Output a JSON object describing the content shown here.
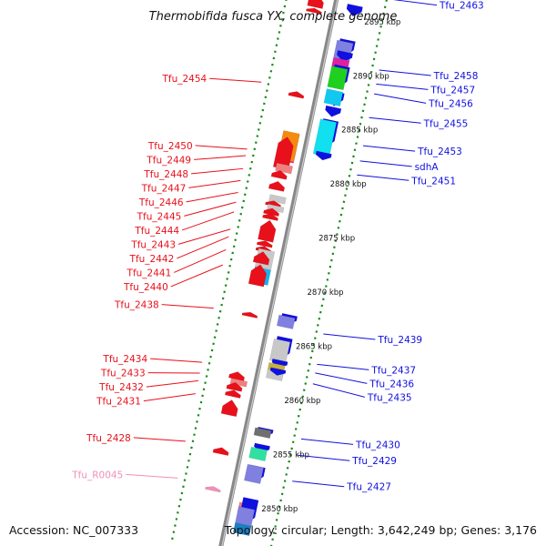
{
  "title": "Thermobifida fusca YX, complete genome",
  "accession": "Accession: NC_007333",
  "topology": "Topology: circular; Length: 3,642,249 bp; Genes: 3,176",
  "colors": {
    "forward": "#e8101a",
    "reverse": "#1010e0",
    "rna": "#f090b8",
    "backbone": "#888888",
    "tick": "#1a8a1a"
  },
  "scale": [
    {
      "text": "2895 kbp",
      "bp": 2895000
    },
    {
      "text": "2890 kbp",
      "bp": 2890000
    },
    {
      "text": "2885 kbp",
      "bp": 2885000
    },
    {
      "text": "2880 kbp",
      "bp": 2880000
    },
    {
      "text": "2875 kbp",
      "bp": 2875000
    },
    {
      "text": "2870 kbp",
      "bp": 2870000
    },
    {
      "text": "2865 kbp",
      "bp": 2865000
    },
    {
      "text": "2860 kbp",
      "bp": 2860000
    },
    {
      "text": "2855 kbp",
      "bp": 2855000
    },
    {
      "text": "2850 kbp",
      "bp": 2850000
    }
  ],
  "left_labels": [
    {
      "text": "Tfu_2454",
      "type": "gene",
      "bp": 2887800
    },
    {
      "text": "Tfu_2450",
      "type": "gene",
      "bp": 2881600
    },
    {
      "text": "Tfu_2449",
      "type": "gene",
      "bp": 2881000
    },
    {
      "text": "Tfu_2448",
      "type": "gene",
      "bp": 2879800
    },
    {
      "text": "Tfu_2447",
      "type": "gene",
      "bp": 2878700
    },
    {
      "text": "Tfu_2446",
      "type": "gene",
      "bp": 2877600
    },
    {
      "text": "Tfu_2445",
      "type": "gene",
      "bp": 2876700
    },
    {
      "text": "Tfu_2444",
      "type": "gene",
      "bp": 2875800
    },
    {
      "text": "Tfu_2443",
      "type": "gene",
      "bp": 2874200
    },
    {
      "text": "Tfu_2442",
      "type": "gene",
      "bp": 2873500
    },
    {
      "text": "Tfu_2441",
      "type": "gene",
      "bp": 2872300
    },
    {
      "text": "Tfu_2440",
      "type": "gene",
      "bp": 2870900
    },
    {
      "text": "Tfu_2438",
      "type": "gene",
      "bp": 2866900
    },
    {
      "text": "Tfu_2434",
      "type": "gene",
      "bp": 2861900
    },
    {
      "text": "Tfu_2433",
      "type": "gene",
      "bp": 2860900
    },
    {
      "text": "Tfu_2432",
      "type": "gene",
      "bp": 2860200
    },
    {
      "text": "Tfu_2431",
      "type": "gene",
      "bp": 2859000
    },
    {
      "text": "Tfu_2428",
      "type": "gene",
      "bp": 2854600
    },
    {
      "text": "Tfu_R0045",
      "type": "rna",
      "bp": 2851200
    }
  ],
  "right_labels": [
    {
      "text": "Tfu_2463",
      "bp": 2897500
    },
    {
      "text": "Tfu_2458",
      "bp": 2891000
    },
    {
      "text": "Tfu_2457",
      "bp": 2889700
    },
    {
      "text": "Tfu_2456",
      "bp": 2888800
    },
    {
      "text": "Tfu_2455",
      "bp": 2886600
    },
    {
      "text": "Tfu_2453",
      "bp": 2884000
    },
    {
      "text": "sdhA",
      "bp": 2882600
    },
    {
      "text": "Tfu_2451",
      "bp": 2881300
    },
    {
      "text": "Tfu_2439",
      "bp": 2866600
    },
    {
      "text": "Tfu_2437",
      "bp": 2863800
    },
    {
      "text": "Tfu_2436",
      "bp": 2863000
    },
    {
      "text": "Tfu_2435",
      "bp": 2862000
    },
    {
      "text": "Tfu_2430",
      "bp": 2856900
    },
    {
      "text": "Tfu_2429",
      "bp": 2855400
    },
    {
      "text": "Tfu_2427",
      "bp": 2853000
    }
  ],
  "features_forward": [
    {
      "start": 2896600,
      "end": 2897700,
      "color": "#f2c0c8",
      "shape": "box"
    },
    {
      "start": 2895400,
      "end": 2896600,
      "color": "#e8101a",
      "shape": "arrow"
    },
    {
      "start": 2894900,
      "end": 2895300,
      "color": "#e8101a",
      "shape": "arrow"
    },
    {
      "start": 2887100,
      "end": 2887600,
      "color": "#e8101a",
      "shape": "arrow"
    },
    {
      "start": 2881200,
      "end": 2883800,
      "color": "#ee10a0",
      "shape": "box"
    },
    {
      "start": 2881300,
      "end": 2883900,
      "color": "#f58a10",
      "shape": "box"
    },
    {
      "start": 2880500,
      "end": 2883400,
      "color": "#e8101a",
      "shape": "arrow"
    },
    {
      "start": 2880200,
      "end": 2880900,
      "color": "#f08080",
      "shape": "box"
    },
    {
      "start": 2879600,
      "end": 2880300,
      "color": "#e8101a",
      "shape": "arrow"
    },
    {
      "start": 2878500,
      "end": 2879300,
      "color": "#e8101a",
      "shape": "arrow"
    },
    {
      "start": 2877400,
      "end": 2878000,
      "color": "#c8c8c8",
      "shape": "box"
    },
    {
      "start": 2877000,
      "end": 2877500,
      "color": "#e8101a",
      "shape": "arrow"
    },
    {
      "start": 2876600,
      "end": 2877100,
      "color": "#c8c8c8",
      "shape": "box"
    },
    {
      "start": 2876200,
      "end": 2876800,
      "color": "#e8101a",
      "shape": "arrow"
    },
    {
      "start": 2875800,
      "end": 2876300,
      "color": "#e8101a",
      "shape": "arrow"
    },
    {
      "start": 2873800,
      "end": 2875700,
      "color": "#e8101a",
      "shape": "arrow"
    },
    {
      "start": 2873300,
      "end": 2873800,
      "color": "#e8101a",
      "shape": "arrow"
    },
    {
      "start": 2872800,
      "end": 2873300,
      "color": "#e8101a",
      "shape": "arrow"
    },
    {
      "start": 2871300,
      "end": 2873000,
      "color": "#c8c8c8",
      "shape": "box"
    },
    {
      "start": 2871700,
      "end": 2872800,
      "color": "#e8101a",
      "shape": "arrow"
    },
    {
      "start": 2869900,
      "end": 2871300,
      "color": "#1ab0f0",
      "shape": "box"
    },
    {
      "start": 2869700,
      "end": 2871600,
      "color": "#e8101a",
      "shape": "arrow"
    },
    {
      "start": 2866800,
      "end": 2867200,
      "color": "#e8101a",
      "shape": "arrow"
    },
    {
      "start": 2860500,
      "end": 2861000,
      "color": "#f08080",
      "shape": "box"
    },
    {
      "start": 2861000,
      "end": 2861700,
      "color": "#e8101a",
      "shape": "arrow"
    },
    {
      "start": 2860000,
      "end": 2860700,
      "color": "#e8101a",
      "shape": "arrow"
    },
    {
      "start": 2859400,
      "end": 2860000,
      "color": "#e8101a",
      "shape": "arrow"
    },
    {
      "start": 2857700,
      "end": 2859100,
      "color": "#e8101a",
      "shape": "arrow"
    },
    {
      "start": 2854100,
      "end": 2854700,
      "color": "#e8101a",
      "shape": "arrow"
    },
    {
      "start": 2850700,
      "end": 2851100,
      "color": "#f090b8",
      "shape": "arrow"
    }
  ],
  "features_reverse": [
    {
      "start": 2896800,
      "end": 2898100,
      "color": "#1010e0",
      "shape": "arrow"
    },
    {
      "start": 2895300,
      "end": 2896300,
      "color": "#1010e0",
      "shape": "arrow"
    },
    {
      "start": 2891600,
      "end": 2893100,
      "color": "#1010e0",
      "shape": "arrow"
    },
    {
      "start": 2891300,
      "end": 2892900,
      "color": "#8080e0",
      "shape": "box"
    },
    {
      "start": 2891100,
      "end": 2892000,
      "color": "#1010e0",
      "shape": "arrow"
    },
    {
      "start": 2890500,
      "end": 2891300,
      "color": "#e020a0",
      "shape": "box"
    },
    {
      "start": 2888700,
      "end": 2890700,
      "color": "#1010e0",
      "shape": "arrow"
    },
    {
      "start": 2888600,
      "end": 2890500,
      "color": "#20d020",
      "shape": "box"
    },
    {
      "start": 2887000,
      "end": 2888300,
      "color": "#1010e0",
      "shape": "arrow"
    },
    {
      "start": 2887100,
      "end": 2888400,
      "color": "#10c8f0",
      "shape": "box"
    },
    {
      "start": 2886000,
      "end": 2886900,
      "color": "#1010e0",
      "shape": "arrow"
    },
    {
      "start": 2883200,
      "end": 2885700,
      "color": "#1010e0",
      "shape": "arrow"
    },
    {
      "start": 2882400,
      "end": 2885600,
      "color": "#10e0f0",
      "shape": "box"
    },
    {
      "start": 2882000,
      "end": 2882700,
      "color": "#1010e0",
      "shape": "arrow"
    },
    {
      "start": 2866800,
      "end": 2867700,
      "color": "#1010e0",
      "shape": "arrow"
    },
    {
      "start": 2866500,
      "end": 2867500,
      "color": "#8080e0",
      "shape": "box"
    },
    {
      "start": 2863600,
      "end": 2865600,
      "color": "#1010e0",
      "shape": "arrow"
    },
    {
      "start": 2863300,
      "end": 2865300,
      "color": "#c8c8c8",
      "shape": "box"
    },
    {
      "start": 2862800,
      "end": 2863500,
      "color": "#1010e0",
      "shape": "arrow"
    },
    {
      "start": 2862300,
      "end": 2863100,
      "color": "#c8b040",
      "shape": "box"
    },
    {
      "start": 2861700,
      "end": 2862500,
      "color": "#c8c8c8",
      "shape": "box"
    },
    {
      "start": 2862100,
      "end": 2862700,
      "color": "#1010e0",
      "shape": "arrow"
    },
    {
      "start": 2856500,
      "end": 2857200,
      "color": "#1010e0",
      "shape": "arrow"
    },
    {
      "start": 2856400,
      "end": 2857100,
      "color": "#707070",
      "shape": "box"
    },
    {
      "start": 2855000,
      "end": 2855700,
      "color": "#1010e0",
      "shape": "arrow"
    },
    {
      "start": 2854300,
      "end": 2855300,
      "color": "#30e0a0",
      "shape": "box"
    },
    {
      "start": 2852200,
      "end": 2853700,
      "color": "#1010e0",
      "shape": "arrow"
    },
    {
      "start": 2852200,
      "end": 2853700,
      "color": "#8080e0",
      "shape": "box"
    },
    {
      "start": 2849200,
      "end": 2850200,
      "color": "#f08080",
      "shape": "box"
    },
    {
      "start": 2848400,
      "end": 2850700,
      "color": "#1010e0",
      "shape": "arrow"
    },
    {
      "start": 2848300,
      "end": 2849800,
      "color": "#8080e0",
      "shape": "box"
    },
    {
      "start": 2847400,
      "end": 2848300,
      "color": "#1a80c0",
      "shape": "box"
    }
  ]
}
